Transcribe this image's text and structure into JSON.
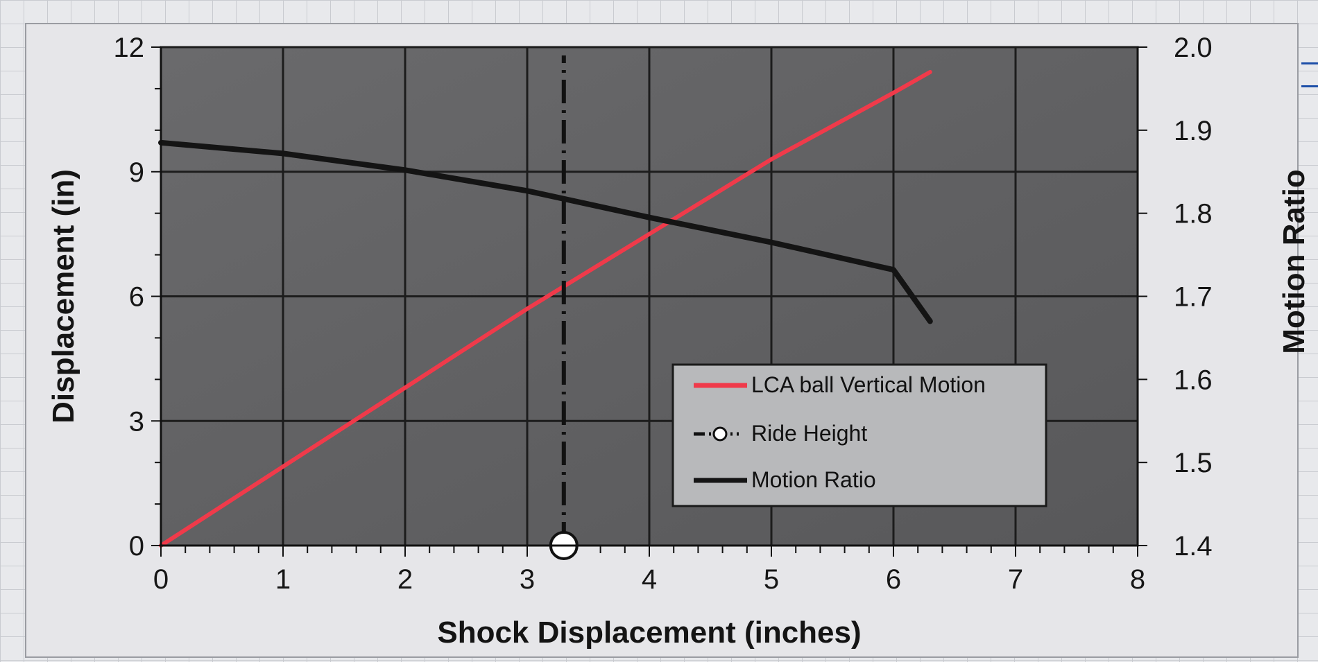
{
  "chart_data": {
    "type": "line",
    "xlabel": "Shock Displacement (inches)",
    "ylabel": "Displacement (in)",
    "y2label": "Motion Ratio",
    "xlim": [
      0,
      8
    ],
    "ylim": [
      0,
      12
    ],
    "y2lim": [
      1.4,
      2.0
    ],
    "x_ticks": [
      "0",
      "1",
      "2",
      "3",
      "4",
      "5",
      "6",
      "7",
      "8"
    ],
    "y_ticks": [
      "0",
      "3",
      "6",
      "9",
      "12"
    ],
    "y2_ticks": [
      "1.4",
      "1.5",
      "1.6",
      "1.7",
      "1.8",
      "1.9",
      "2.0"
    ],
    "grid": true,
    "legend_position": "bottom-right",
    "series": [
      {
        "name": "LCA ball Vertical Motion",
        "axis": "left",
        "color": "#f03a4a",
        "x": [
          0,
          1,
          2,
          3,
          4,
          5,
          6,
          6.3
        ],
        "y": [
          0,
          1.9,
          3.8,
          5.7,
          7.5,
          9.3,
          10.9,
          11.4
        ]
      },
      {
        "name": "Ride Height",
        "axis": "left",
        "style": "dash-dot",
        "marker": "open-circle",
        "color": "#111111",
        "x": [
          3.3,
          3.3
        ],
        "y": [
          0,
          11.8
        ]
      },
      {
        "name": "Motion Ratio",
        "axis": "right",
        "color": "#141414",
        "x": [
          0,
          1,
          2,
          3,
          4,
          5,
          6,
          6.3
        ],
        "y": [
          1.885,
          1.872,
          1.852,
          1.827,
          1.795,
          1.765,
          1.732,
          1.67
        ]
      }
    ]
  }
}
